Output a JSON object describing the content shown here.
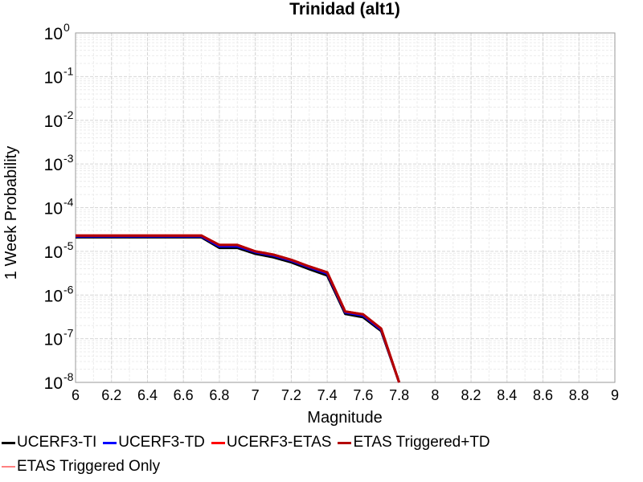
{
  "chart_data": {
    "type": "line",
    "title": "Trinidad (alt1)",
    "xlabel": "Magnitude",
    "ylabel": "1 Week Probability",
    "xlim": [
      6,
      9
    ],
    "ylim": [
      1e-08,
      1
    ],
    "yscale": "log",
    "grid": true,
    "legend_position": "bottom",
    "x_ticks": [
      "6",
      "6.2",
      "6.4",
      "6.6",
      "6.8",
      "7",
      "7.2",
      "7.4",
      "7.6",
      "7.8",
      "8",
      "8.2",
      "8.4",
      "8.6",
      "8.8",
      "9"
    ],
    "y_ticks": [
      {
        "base": "10",
        "exp": "0"
      },
      {
        "base": "10",
        "exp": "-1"
      },
      {
        "base": "10",
        "exp": "-2"
      },
      {
        "base": "10",
        "exp": "-3"
      },
      {
        "base": "10",
        "exp": "-4"
      },
      {
        "base": "10",
        "exp": "-5"
      },
      {
        "base": "10",
        "exp": "-6"
      },
      {
        "base": "10",
        "exp": "-7"
      },
      {
        "base": "10",
        "exp": "-8"
      }
    ],
    "series": [
      {
        "name": "UCERF3-TI",
        "color": "#000000",
        "x": [
          6.0,
          6.1,
          6.2,
          6.3,
          6.4,
          6.5,
          6.6,
          6.7,
          6.8,
          6.9,
          7.0,
          7.1,
          7.2,
          7.3,
          7.4,
          7.5,
          7.6,
          7.7,
          7.8
        ],
        "y": [
          2.1e-05,
          2.1e-05,
          2.1e-05,
          2.1e-05,
          2.1e-05,
          2.1e-05,
          2.1e-05,
          2.1e-05,
          1.2e-05,
          1.2e-05,
          8.8e-06,
          7.3e-06,
          5.6e-06,
          3.9e-06,
          2.8e-06,
          3.7e-07,
          3.1e-07,
          1.5e-07,
          1e-08
        ]
      },
      {
        "name": "UCERF3-TD",
        "color": "#0000ff",
        "x": [
          6.0,
          6.1,
          6.2,
          6.3,
          6.4,
          6.5,
          6.6,
          6.7,
          6.8,
          6.9,
          7.0,
          7.1,
          7.2,
          7.3,
          7.4,
          7.5,
          7.6,
          7.7,
          7.8
        ],
        "y": [
          2.2e-05,
          2.2e-05,
          2.2e-05,
          2.2e-05,
          2.2e-05,
          2.2e-05,
          2.2e-05,
          2.2e-05,
          1.3e-05,
          1.3e-05,
          9.6e-06,
          8e-06,
          6.1e-06,
          4.3e-06,
          3.1e-06,
          4e-07,
          3.4e-07,
          1.6e-07,
          1e-08
        ]
      },
      {
        "name": "UCERF3-ETAS",
        "color": "#ff0000",
        "x": [
          6.0,
          6.1,
          6.2,
          6.3,
          6.4,
          6.5,
          6.6,
          6.7,
          6.8,
          6.9,
          7.0,
          7.1,
          7.2,
          7.3,
          7.4,
          7.5,
          7.6,
          7.7,
          7.8
        ],
        "y": [
          2.3e-05,
          2.3e-05,
          2.3e-05,
          2.3e-05,
          2.3e-05,
          2.3e-05,
          2.3e-05,
          2.3e-05,
          1.4e-05,
          1.4e-05,
          1e-05,
          8.4e-06,
          6.4e-06,
          4.5e-06,
          3.3e-06,
          4.2e-07,
          3.6e-07,
          1.7e-07,
          1e-08
        ]
      },
      {
        "name": "ETAS Triggered+TD",
        "color": "#b30000",
        "x": [
          6.0,
          6.1,
          6.2,
          6.3,
          6.4,
          6.5,
          6.6,
          6.7,
          6.8,
          6.9,
          7.0,
          7.1,
          7.2,
          7.3,
          7.4,
          7.5,
          7.6,
          7.7,
          7.8
        ],
        "y": [
          2.3e-05,
          2.3e-05,
          2.3e-05,
          2.3e-05,
          2.3e-05,
          2.3e-05,
          2.3e-05,
          2.3e-05,
          1.4e-05,
          1.4e-05,
          1e-05,
          8.4e-06,
          6.4e-06,
          4.5e-06,
          3.3e-06,
          4.2e-07,
          3.6e-07,
          1.7e-07,
          1e-08
        ]
      },
      {
        "name": "ETAS Triggered Only",
        "color": "#ff8080",
        "x": [],
        "y": []
      }
    ]
  }
}
